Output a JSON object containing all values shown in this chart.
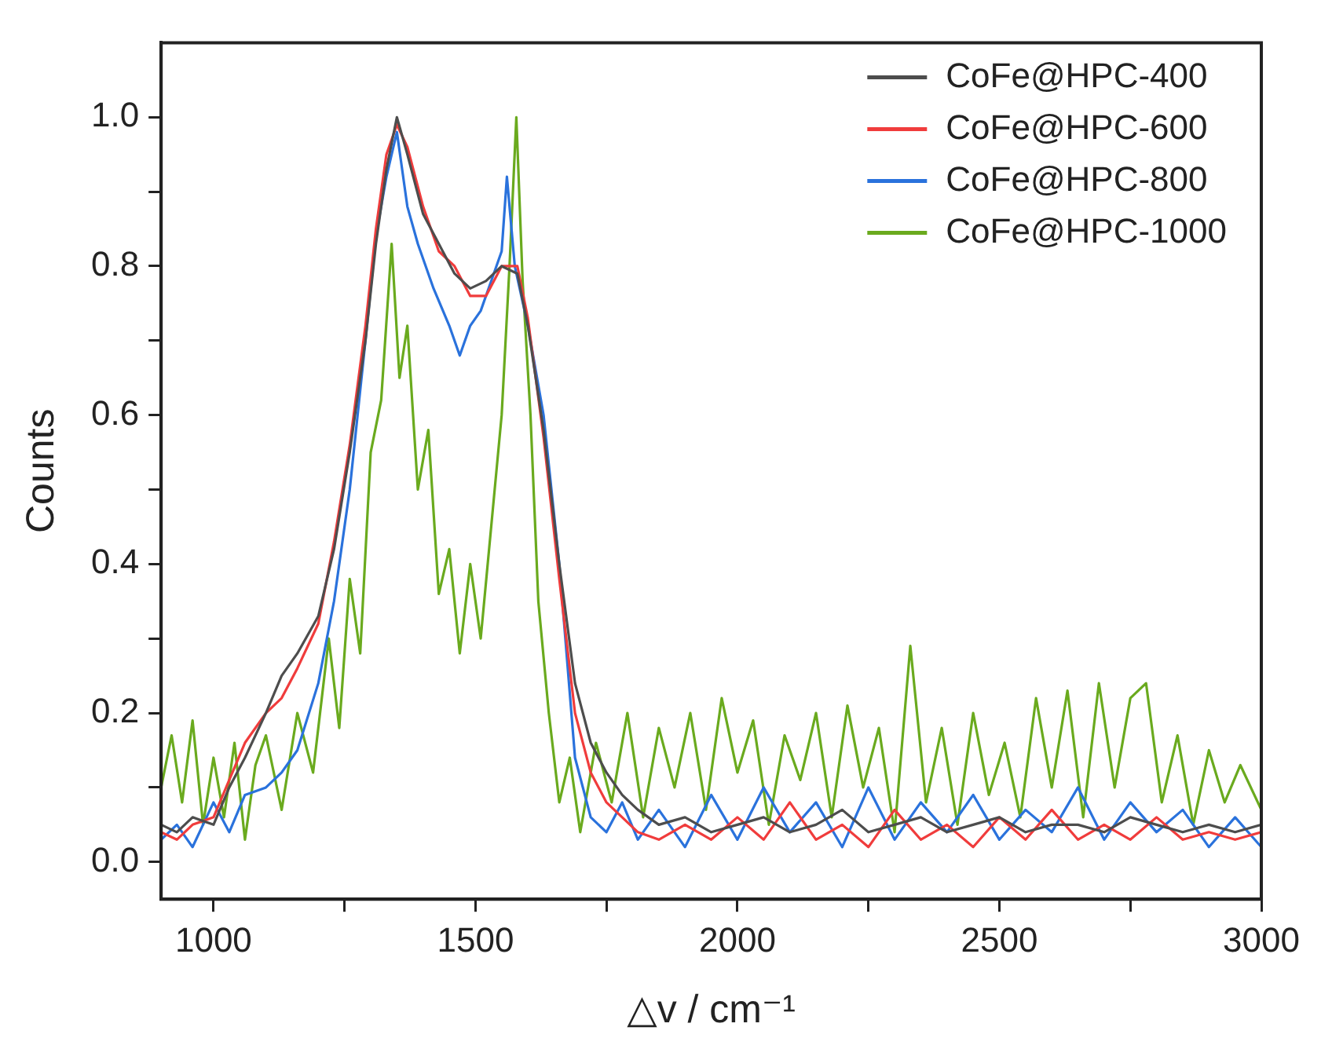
{
  "chart_data": {
    "type": "line",
    "xlabel": "△v / cm⁻¹",
    "ylabel": "Counts",
    "xlim": [
      900,
      3000
    ],
    "ylim": [
      -0.05,
      1.1
    ],
    "xticks": [
      1000,
      {
        "value": 1250,
        "label": null
      },
      1500,
      {
        "value": 1750,
        "label": null
      },
      2000,
      {
        "value": 2250,
        "label": null
      },
      2500,
      {
        "value": 2750,
        "label": null
      },
      3000
    ],
    "yticks": [
      {
        "value": 0,
        "label": "0.0"
      },
      {
        "value": 0.1,
        "label": null
      },
      {
        "value": 0.2,
        "label": "0.2"
      },
      {
        "value": 0.3,
        "label": null
      },
      {
        "value": 0.4,
        "label": "0.4"
      },
      {
        "value": 0.5,
        "label": null
      },
      {
        "value": 0.6,
        "label": "0.6"
      },
      {
        "value": 0.7,
        "label": null
      },
      {
        "value": 0.8,
        "label": "0.8"
      },
      {
        "value": 0.9,
        "label": null
      },
      {
        "value": 1.0,
        "label": "1.0"
      }
    ],
    "grid": false,
    "legend": "top right",
    "marker": "none",
    "line_style": "solid",
    "series": [
      {
        "name": "CoFe@HPC-400",
        "color": "#4d4d4d",
        "x": [
          900,
          930,
          960,
          1000,
          1030,
          1060,
          1100,
          1130,
          1160,
          1200,
          1230,
          1260,
          1290,
          1310,
          1330,
          1350,
          1370,
          1400,
          1430,
          1460,
          1490,
          1520,
          1550,
          1580,
          1600,
          1630,
          1660,
          1690,
          1720,
          1750,
          1780,
          1810,
          1850,
          1900,
          1950,
          2000,
          2050,
          2100,
          2150,
          2200,
          2250,
          2300,
          2350,
          2400,
          2450,
          2500,
          2550,
          2600,
          2650,
          2700,
          2750,
          2800,
          2850,
          2900,
          2950,
          3000
        ],
        "values": [
          0.05,
          0.04,
          0.06,
          0.05,
          0.1,
          0.14,
          0.2,
          0.25,
          0.28,
          0.33,
          0.42,
          0.55,
          0.7,
          0.83,
          0.93,
          1.0,
          0.95,
          0.87,
          0.83,
          0.79,
          0.77,
          0.78,
          0.8,
          0.79,
          0.72,
          0.58,
          0.4,
          0.24,
          0.16,
          0.12,
          0.09,
          0.07,
          0.05,
          0.06,
          0.04,
          0.05,
          0.06,
          0.04,
          0.05,
          0.07,
          0.04,
          0.05,
          0.06,
          0.04,
          0.05,
          0.06,
          0.04,
          0.05,
          0.05,
          0.04,
          0.06,
          0.05,
          0.04,
          0.05,
          0.04,
          0.05
        ]
      },
      {
        "name": "CoFe@HPC-600",
        "color": "#f03c3c",
        "x": [
          900,
          930,
          960,
          1000,
          1030,
          1060,
          1100,
          1130,
          1160,
          1200,
          1230,
          1260,
          1290,
          1310,
          1330,
          1350,
          1370,
          1400,
          1430,
          1460,
          1490,
          1520,
          1550,
          1580,
          1600,
          1630,
          1660,
          1690,
          1720,
          1750,
          1780,
          1810,
          1850,
          1900,
          1950,
          2000,
          2050,
          2100,
          2150,
          2200,
          2250,
          2300,
          2350,
          2400,
          2450,
          2500,
          2550,
          2600,
          2650,
          2700,
          2750,
          2800,
          2850,
          2900,
          2950,
          3000
        ],
        "values": [
          0.04,
          0.03,
          0.05,
          0.06,
          0.11,
          0.16,
          0.2,
          0.22,
          0.26,
          0.32,
          0.43,
          0.56,
          0.72,
          0.85,
          0.95,
          0.99,
          0.96,
          0.88,
          0.82,
          0.8,
          0.76,
          0.76,
          0.8,
          0.8,
          0.73,
          0.57,
          0.38,
          0.2,
          0.12,
          0.08,
          0.06,
          0.04,
          0.03,
          0.05,
          0.03,
          0.06,
          0.03,
          0.08,
          0.03,
          0.05,
          0.02,
          0.07,
          0.03,
          0.05,
          0.02,
          0.06,
          0.03,
          0.07,
          0.03,
          0.05,
          0.03,
          0.06,
          0.03,
          0.04,
          0.03,
          0.04
        ]
      },
      {
        "name": "CoFe@HPC-800",
        "color": "#2a72dc",
        "x": [
          900,
          930,
          960,
          1000,
          1030,
          1060,
          1100,
          1130,
          1160,
          1200,
          1230,
          1260,
          1290,
          1310,
          1330,
          1350,
          1370,
          1390,
          1420,
          1450,
          1470,
          1490,
          1510,
          1530,
          1550,
          1560,
          1575,
          1600,
          1630,
          1660,
          1690,
          1720,
          1750,
          1780,
          1810,
          1850,
          1900,
          1950,
          2000,
          2050,
          2100,
          2150,
          2200,
          2250,
          2300,
          2350,
          2400,
          2450,
          2500,
          2550,
          2600,
          2650,
          2700,
          2750,
          2800,
          2850,
          2900,
          2950,
          3000
        ],
        "values": [
          0.03,
          0.05,
          0.02,
          0.08,
          0.04,
          0.09,
          0.1,
          0.12,
          0.15,
          0.24,
          0.35,
          0.5,
          0.7,
          0.84,
          0.92,
          0.98,
          0.88,
          0.83,
          0.77,
          0.72,
          0.68,
          0.72,
          0.74,
          0.78,
          0.82,
          0.92,
          0.8,
          0.72,
          0.6,
          0.4,
          0.14,
          0.06,
          0.04,
          0.08,
          0.03,
          0.07,
          0.02,
          0.09,
          0.03,
          0.1,
          0.04,
          0.08,
          0.02,
          0.1,
          0.03,
          0.08,
          0.04,
          0.09,
          0.03,
          0.07,
          0.04,
          0.1,
          0.03,
          0.08,
          0.04,
          0.07,
          0.02,
          0.06,
          0.02
        ]
      },
      {
        "name": "CoFe@HPC-1000",
        "color": "#6aaa1e",
        "x": [
          900,
          920,
          940,
          960,
          980,
          1000,
          1020,
          1040,
          1060,
          1080,
          1100,
          1130,
          1160,
          1190,
          1220,
          1240,
          1260,
          1280,
          1300,
          1320,
          1340,
          1355,
          1370,
          1390,
          1410,
          1430,
          1450,
          1470,
          1490,
          1510,
          1530,
          1550,
          1565,
          1578,
          1590,
          1605,
          1620,
          1640,
          1660,
          1680,
          1700,
          1730,
          1760,
          1790,
          1820,
          1850,
          1880,
          1910,
          1940,
          1970,
          2000,
          2030,
          2060,
          2090,
          2120,
          2150,
          2180,
          2210,
          2240,
          2270,
          2300,
          2330,
          2360,
          2390,
          2420,
          2450,
          2480,
          2510,
          2540,
          2570,
          2600,
          2630,
          2660,
          2690,
          2720,
          2750,
          2780,
          2810,
          2840,
          2870,
          2900,
          2930,
          2960,
          3000
        ],
        "values": [
          0.1,
          0.17,
          0.08,
          0.19,
          0.05,
          0.14,
          0.06,
          0.16,
          0.03,
          0.13,
          0.17,
          0.07,
          0.2,
          0.12,
          0.3,
          0.18,
          0.38,
          0.28,
          0.55,
          0.62,
          0.83,
          0.65,
          0.72,
          0.5,
          0.58,
          0.36,
          0.42,
          0.28,
          0.4,
          0.3,
          0.45,
          0.6,
          0.8,
          1.0,
          0.78,
          0.6,
          0.35,
          0.2,
          0.08,
          0.14,
          0.04,
          0.16,
          0.08,
          0.2,
          0.06,
          0.18,
          0.1,
          0.2,
          0.07,
          0.22,
          0.12,
          0.19,
          0.05,
          0.17,
          0.11,
          0.2,
          0.06,
          0.21,
          0.1,
          0.18,
          0.04,
          0.29,
          0.08,
          0.18,
          0.05,
          0.2,
          0.09,
          0.16,
          0.06,
          0.22,
          0.1,
          0.23,
          0.06,
          0.24,
          0.1,
          0.22,
          0.24,
          0.08,
          0.17,
          0.05,
          0.15,
          0.08,
          0.13,
          0.07
        ]
      }
    ]
  }
}
